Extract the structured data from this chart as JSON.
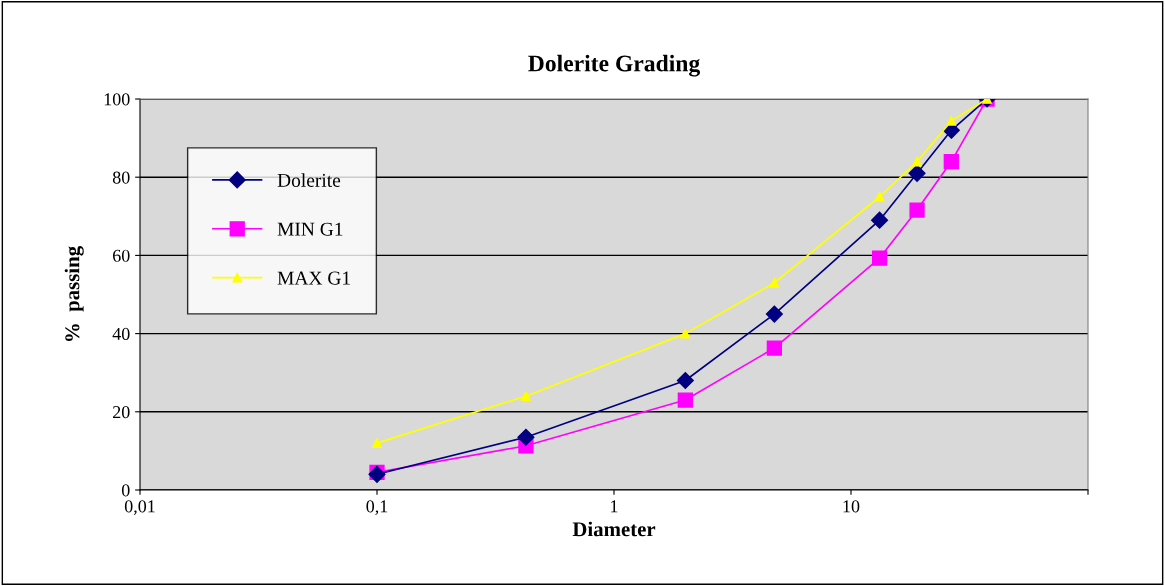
{
  "chart_data": {
    "type": "line",
    "title": "Dolerite Grading",
    "xlabel": "Diameter",
    "ylabel": "%  passing",
    "x": [
      0.1,
      0.425,
      2,
      4.75,
      13.2,
      19,
      26.5,
      37.5
    ],
    "series": [
      {
        "name": "Dolerite",
        "color": "#000080",
        "marker": "diamond",
        "values": [
          4,
          13.5,
          28,
          45,
          69,
          81,
          92,
          100
        ]
      },
      {
        "name": "MIN G1",
        "color": "#ff00ff",
        "marker": "square",
        "values": [
          4.5,
          11.3,
          23,
          36.3,
          59.3,
          71.6,
          84,
          100
        ]
      },
      {
        "name": "MAX G1",
        "color": "#ffff00",
        "marker": "triangle",
        "values": [
          12,
          24,
          40,
          53,
          75,
          84,
          94.4,
          100
        ]
      }
    ],
    "log": "x",
    "xlim": [
      0.01,
      100
    ],
    "xticks": [
      {
        "value": 0.01,
        "label": "0,01"
      },
      {
        "value": 0.1,
        "label": "0,1"
      },
      {
        "value": 1,
        "label": "1"
      },
      {
        "value": 10,
        "label": "10"
      },
      {
        "value": 100,
        "label": null
      }
    ],
    "ylim": [
      0,
      100
    ],
    "yticks": [
      0,
      20,
      40,
      60,
      80,
      100
    ],
    "grid": "y",
    "legend": "top left",
    "line_style": "solid"
  }
}
